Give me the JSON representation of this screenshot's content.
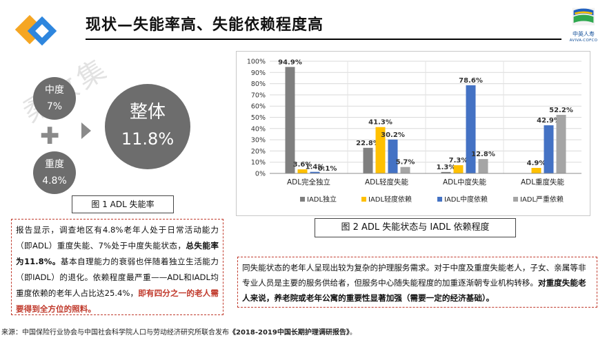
{
  "header": {
    "title": "现状—失能率高、失能依赖程度高",
    "brand_cn": "中英人寿",
    "brand_en": "AVIVA-COFCO"
  },
  "watermark": "柔收集",
  "figure1": {
    "moderate_label": "中度",
    "moderate_value": "7%",
    "severe_label": "重度",
    "severe_value": "4.8%",
    "overall_label": "整体",
    "overall_value": "11.8%",
    "caption": "图 1    ADL 失能率"
  },
  "report": {
    "p1": "报告显示，调查地区有4.8%老年人处于日常活动能力（即ADL）重度失能、7%处于中度失能状态，",
    "p1_bold": "总失能率为11.8%。",
    "p2": "基本自理能力的衰弱也伴随着独立生活能力（即IADL）的退化。依赖程度最严重——ADL和IADL均重度依赖的老年人占比达25.4%，",
    "p2_highlight": "即有四分之一的老人需要得到全方位的照料。"
  },
  "figure2": {
    "caption": "图 2    ADL 失能状态与 IADL 依赖程度"
  },
  "summary": {
    "text": "同失能状态的老年人呈现出较为复杂的护理服务需求。对于中度及重度失能老人，子女、亲属等非专业人员是主要的服务供给者，但服务中心随失能程度的加重逐渐朝专业机构转移。",
    "bold": "对重度失能老人来说，养老院或老年公寓的重要性显著加强（需要一定的经济基础）。"
  },
  "source": {
    "prefix": "来源：中国保险行业协会与中国社会科学院人口与劳动经济研究所联合发布",
    "report": "《2018-2019中国长期护理调研报告》",
    "suffix": "。"
  },
  "colors": {
    "iadl_independent": "#7f7f7f",
    "iadl_mild": "#ffc000",
    "iadl_moderate": "#4472c4",
    "iadl_severe": "#a5a5a5",
    "circle": "#6d6d6d",
    "highlight_red": "#c0392b"
  },
  "chart_data": {
    "type": "bar",
    "categories": [
      "ADL完全独立",
      "ADL轻度失能",
      "ADL中度失能",
      "ADL重度失能"
    ],
    "series": [
      {
        "name": "IADL独立",
        "values": [
          94.9,
          22.8,
          1.3,
          0.0
        ]
      },
      {
        "name": "IADL轻度依赖",
        "values": [
          3.6,
          41.3,
          7.3,
          4.9
        ]
      },
      {
        "name": "IADL中度依赖",
        "values": [
          1.4,
          30.2,
          78.6,
          42.9
        ]
      },
      {
        "name": "IADL严重依赖",
        "values": [
          0.1,
          5.7,
          12.8,
          52.2
        ]
      }
    ],
    "value_labels": [
      [
        "94.9%",
        "3.6%",
        "1.4%",
        "0.1%"
      ],
      [
        "22.8%",
        "41.3%",
        "30.2%",
        "5.7%"
      ],
      [
        "1.3%",
        "7.3%",
        "78.6%",
        "12.8%"
      ],
      [
        "",
        "4.9%",
        "42.9%",
        "52.2%"
      ]
    ],
    "y_ticks": [
      "0%",
      "10%",
      "20%",
      "30%",
      "40%",
      "50%",
      "60%",
      "70%",
      "80%",
      "90%",
      "100%"
    ],
    "ylim": [
      0,
      100
    ],
    "grid": true,
    "legend_position": "bottom"
  }
}
